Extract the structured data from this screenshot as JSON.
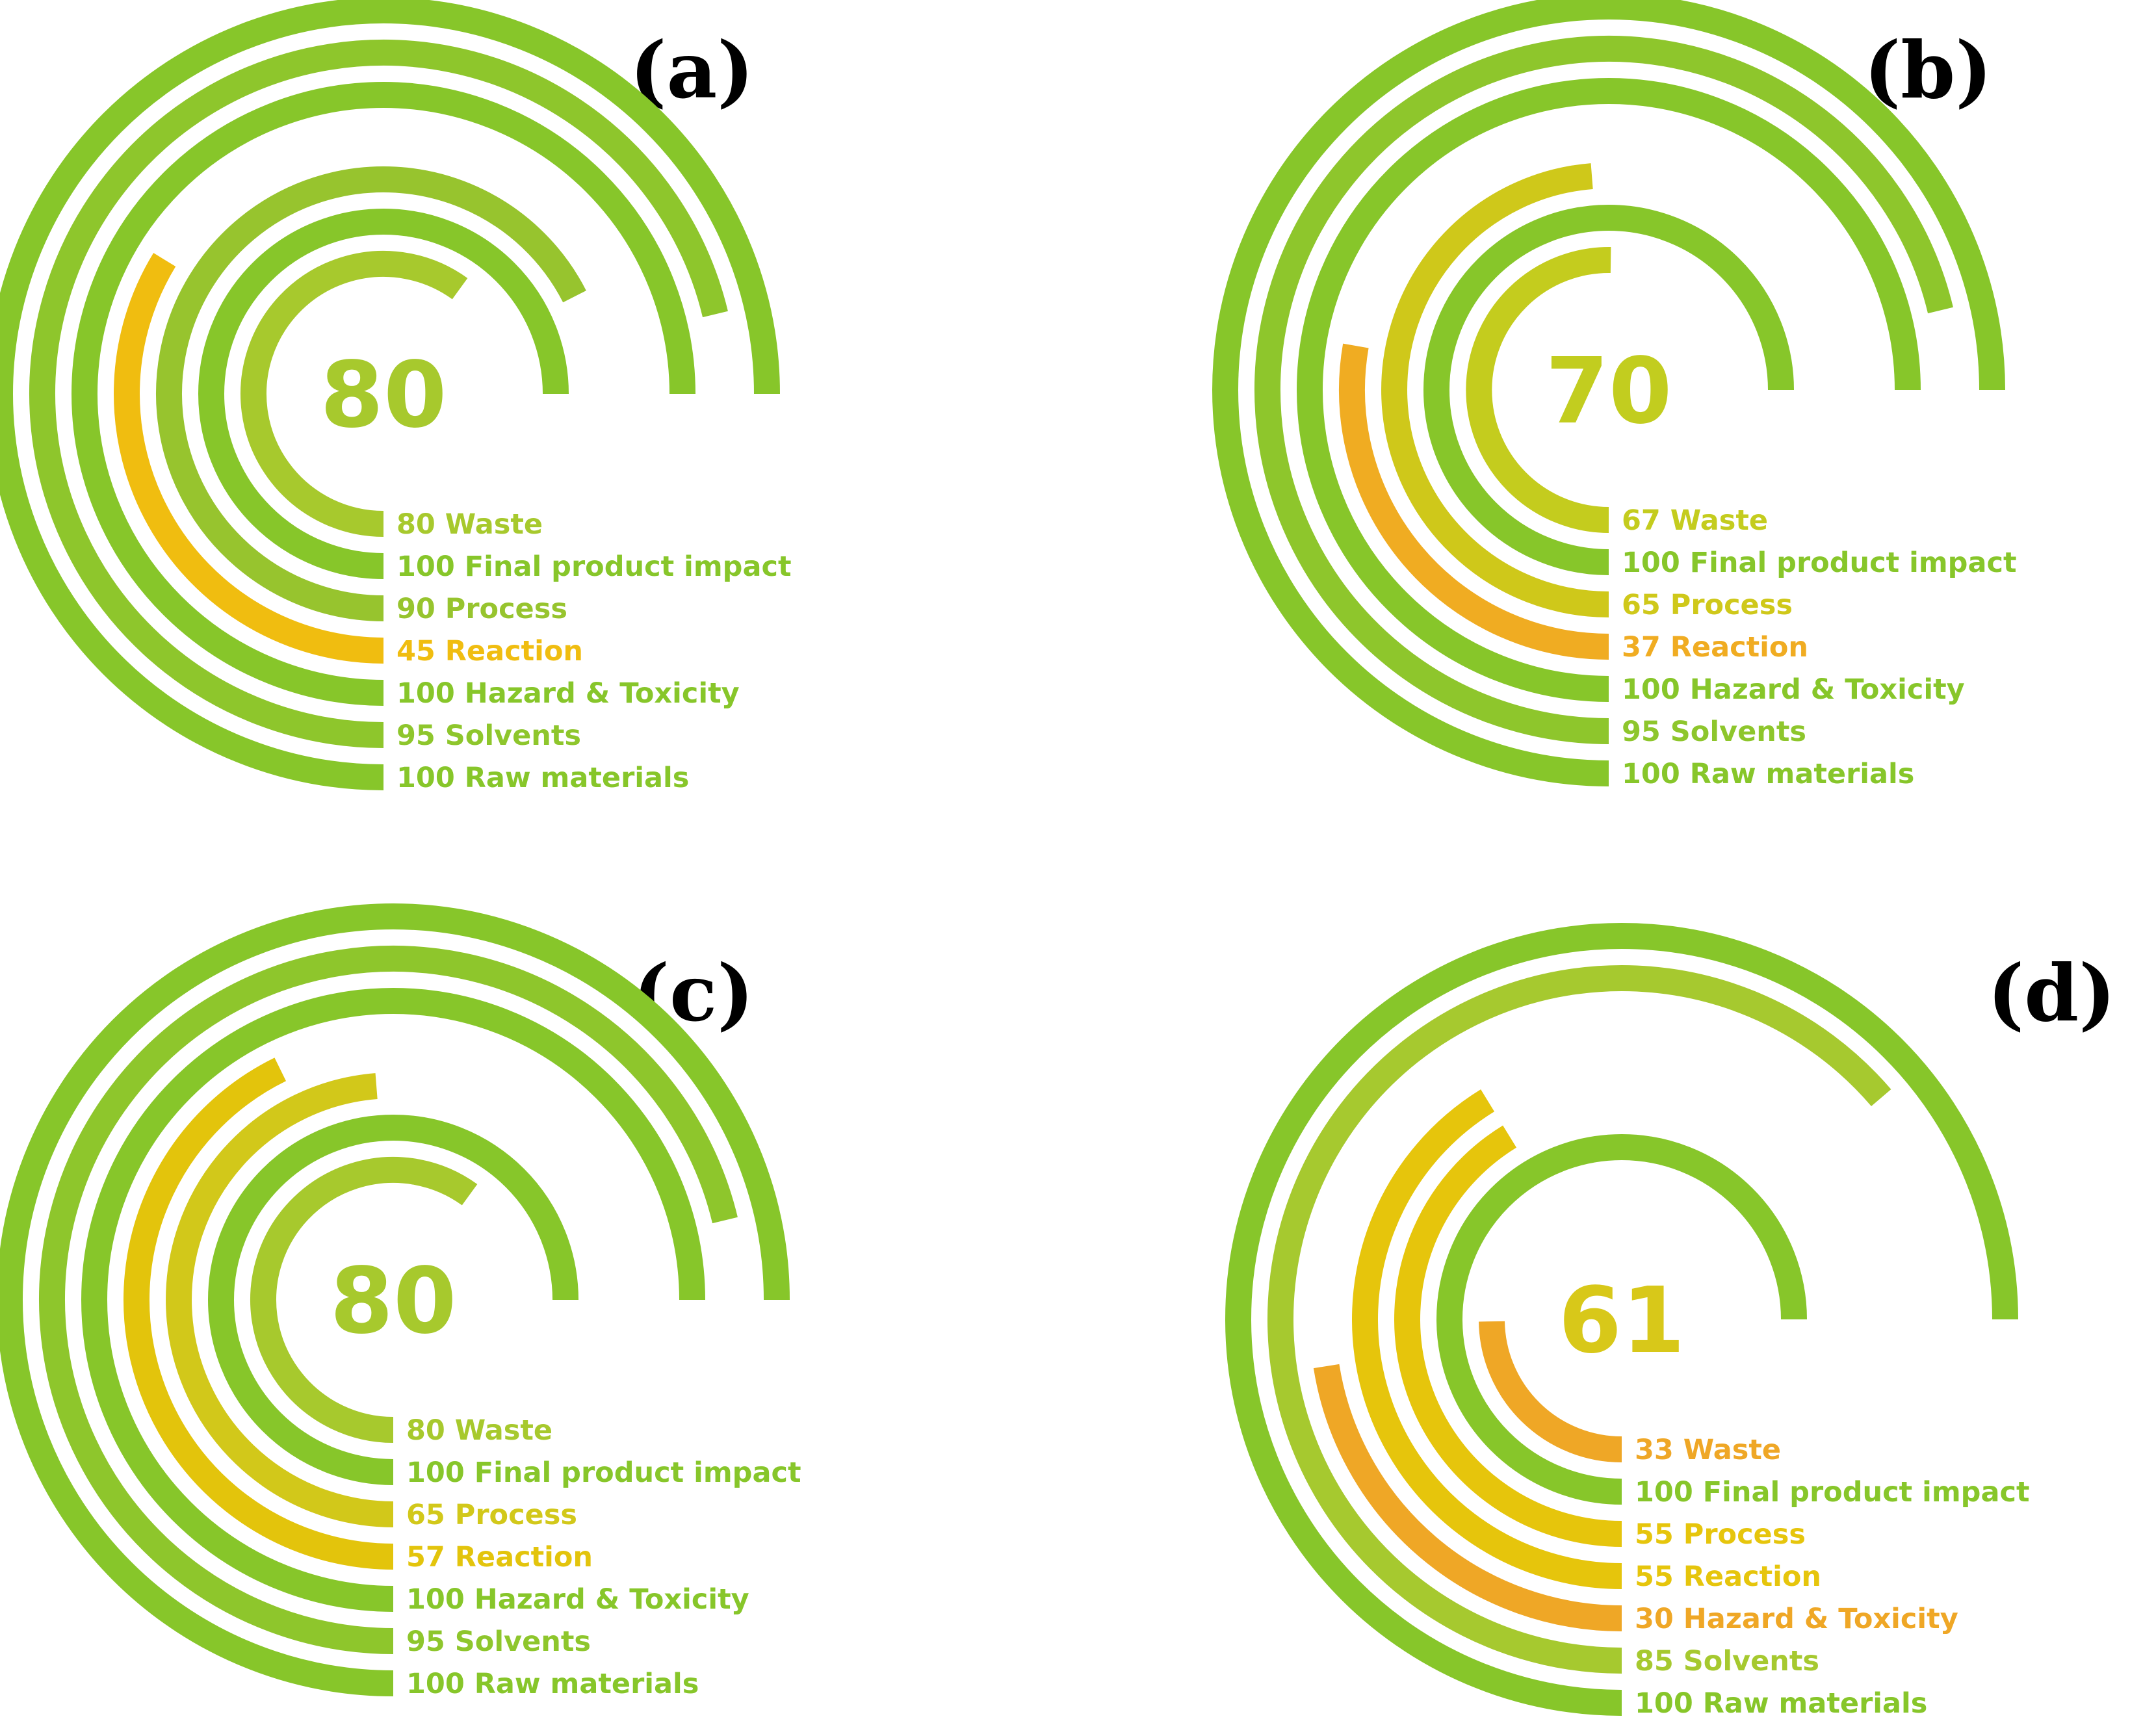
{
  "chart_data": [
    {
      "type": "radial-bar",
      "panel_label": "(a)",
      "score": "80",
      "score_color": "#a7c92d",
      "max_value": 100,
      "metrics": [
        {
          "value": 80,
          "name": "Waste",
          "label": "80 Waste",
          "color": "#a7c92d"
        },
        {
          "value": 100,
          "name": "Final product impact",
          "label": "100 Final product impact",
          "color": "#87c62a"
        },
        {
          "value": 90,
          "name": "Process",
          "label": "90 Process",
          "color": "#97c42e"
        },
        {
          "value": 45,
          "name": "Reaction",
          "label": "45 Reaction",
          "color": "#f0bd10"
        },
        {
          "value": 100,
          "name": "Hazard & Toxicity",
          "label": "100 Hazard & Toxicity",
          "color": "#87c62a"
        },
        {
          "value": 95,
          "name": "Solvents",
          "label": "95 Solvents",
          "color": "#8ec62c"
        },
        {
          "value": 100,
          "name": "Raw materials",
          "label": "100 Raw materials",
          "color": "#87c62a"
        }
      ]
    },
    {
      "type": "radial-bar",
      "panel_label": "(b)",
      "score": "70",
      "score_color": "#c2cd1f",
      "max_value": 100,
      "metrics": [
        {
          "value": 67,
          "name": "Waste",
          "label": "67 Waste",
          "color": "#c4cc1e"
        },
        {
          "value": 100,
          "name": "Final product impact",
          "label": "100 Final product impact",
          "color": "#87c62a"
        },
        {
          "value": 65,
          "name": "Process",
          "label": "65 Process",
          "color": "#cfc81a"
        },
        {
          "value": 37,
          "name": "Reaction",
          "label": "37 Reaction",
          "color": "#f0ac22"
        },
        {
          "value": 100,
          "name": "Hazard & Toxicity",
          "label": "100 Hazard & Toxicity",
          "color": "#87c62a"
        },
        {
          "value": 95,
          "name": "Solvents",
          "label": "95 Solvents",
          "color": "#8ec62c"
        },
        {
          "value": 100,
          "name": "Raw materials",
          "label": "100 Raw materials",
          "color": "#87c62a"
        }
      ]
    },
    {
      "type": "radial-bar",
      "panel_label": "(c)",
      "score": "80",
      "score_color": "#a7c92d",
      "max_value": 100,
      "metrics": [
        {
          "value": 80,
          "name": "Waste",
          "label": "80 Waste",
          "color": "#a7c92d"
        },
        {
          "value": 100,
          "name": "Final product impact",
          "label": "100 Final product impact",
          "color": "#87c62a"
        },
        {
          "value": 65,
          "name": "Process",
          "label": "65 Process",
          "color": "#d2c81a"
        },
        {
          "value": 57,
          "name": "Reaction",
          "label": "57 Reaction",
          "color": "#e3c40c"
        },
        {
          "value": 100,
          "name": "Hazard & Toxicity",
          "label": "100 Hazard & Toxicity",
          "color": "#87c62a"
        },
        {
          "value": 95,
          "name": "Solvents",
          "label": "95 Solvents",
          "color": "#8ec62c"
        },
        {
          "value": 100,
          "name": "Raw materials",
          "label": "100 Raw materials",
          "color": "#87c62a"
        }
      ]
    },
    {
      "type": "radial-bar",
      "panel_label": "(d)",
      "score": "61",
      "score_color": "#d8c819",
      "max_value": 100,
      "metrics": [
        {
          "value": 33,
          "name": "Waste",
          "label": "33 Waste",
          "color": "#efa726"
        },
        {
          "value": 100,
          "name": "Final product impact",
          "label": "100 Final product impact",
          "color": "#87c62a"
        },
        {
          "value": 55,
          "name": "Process",
          "label": "55 Process",
          "color": "#e6c50c"
        },
        {
          "value": 55,
          "name": "Reaction",
          "label": "55 Reaction",
          "color": "#e6c50c"
        },
        {
          "value": 30,
          "name": "Hazard & Toxicity",
          "label": "30 Hazard & Toxicity",
          "color": "#efa726"
        },
        {
          "value": 85,
          "name": "Solvents",
          "label": "85 Solvents",
          "color": "#a6c92f"
        },
        {
          "value": 100,
          "name": "Raw materials",
          "label": "100 Raw materials",
          "color": "#87c62a"
        }
      ]
    }
  ]
}
